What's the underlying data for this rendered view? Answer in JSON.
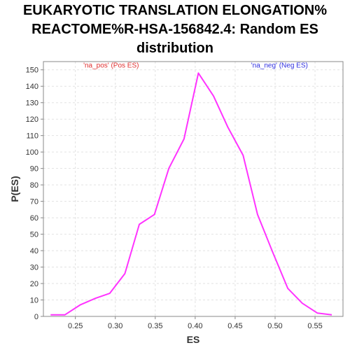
{
  "chart_data": {
    "type": "line",
    "title_lines": [
      "EUKARYOTIC TRANSLATION ELONGATION%",
      "REACTOME%R-HSA-156842.4: Random ES",
      "distribution"
    ],
    "xlabel": "ES",
    "ylabel": "P(ES)",
    "xlim": [
      0.21,
      0.585
    ],
    "ylim": [
      0,
      155
    ],
    "x_ticks": [
      "0.25",
      "0.30",
      "0.35",
      "0.40",
      "0.45",
      "0.50",
      "0.55"
    ],
    "x_tick_values": [
      0.25,
      0.3,
      0.35,
      0.4,
      0.45,
      0.5,
      0.55
    ],
    "y_ticks": [
      "0",
      "10",
      "20",
      "30",
      "40",
      "50",
      "60",
      "70",
      "80",
      "90",
      "100",
      "110",
      "120",
      "130",
      "140",
      "150"
    ],
    "y_tick_values": [
      0,
      10,
      20,
      30,
      40,
      50,
      60,
      70,
      80,
      90,
      100,
      110,
      120,
      130,
      140,
      150
    ],
    "grid": true,
    "annotations": [
      {
        "text": "'na_pos' (Pos ES)",
        "color": "#e03030",
        "x": 0.26,
        "y": 150
      },
      {
        "text": "'na_neg' (Neg ES)",
        "color": "#3030e0",
        "x": 0.47,
        "y": 150
      }
    ],
    "series": [
      {
        "color": "#ff33ff",
        "x": [
          0.219,
          0.237,
          0.256,
          0.275,
          0.293,
          0.312,
          0.33,
          0.349,
          0.367,
          0.386,
          0.404,
          0.423,
          0.441,
          0.46,
          0.478,
          0.497,
          0.516,
          0.534,
          0.553,
          0.571
        ],
        "y": [
          1,
          1,
          7,
          11,
          14,
          26,
          56,
          62,
          90,
          108,
          148,
          134,
          115,
          98,
          62,
          39,
          17,
          8,
          2,
          1
        ]
      }
    ]
  }
}
